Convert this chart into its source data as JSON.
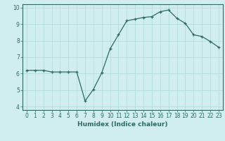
{
  "title": "",
  "xlabel": "Humidex (Indice chaleur)",
  "ylabel": "",
  "x": [
    0,
    1,
    2,
    3,
    4,
    5,
    6,
    7,
    8,
    9,
    10,
    11,
    12,
    13,
    14,
    15,
    16,
    17,
    18,
    19,
    20,
    21,
    22,
    23
  ],
  "y": [
    6.2,
    6.2,
    6.2,
    6.1,
    6.1,
    6.1,
    6.1,
    4.35,
    5.05,
    6.05,
    7.5,
    8.35,
    9.2,
    9.3,
    9.4,
    9.45,
    9.75,
    9.85,
    9.35,
    9.05,
    8.35,
    8.25,
    7.95,
    7.6
  ],
  "line_color": "#2e6b5e",
  "marker": "+",
  "marker_size": 3,
  "background_color": "#d0eeee",
  "grid_color": "#b0d8d8",
  "ylim": [
    3.8,
    10.2
  ],
  "xlim": [
    -0.5,
    23.5
  ],
  "yticks": [
    4,
    5,
    6,
    7,
    8,
    9,
    10
  ],
  "xticks": [
    0,
    1,
    2,
    3,
    4,
    5,
    6,
    7,
    8,
    9,
    10,
    11,
    12,
    13,
    14,
    15,
    16,
    17,
    18,
    19,
    20,
    21,
    22,
    23
  ],
  "axis_fontsize": 6.5,
  "tick_fontsize": 5.5
}
